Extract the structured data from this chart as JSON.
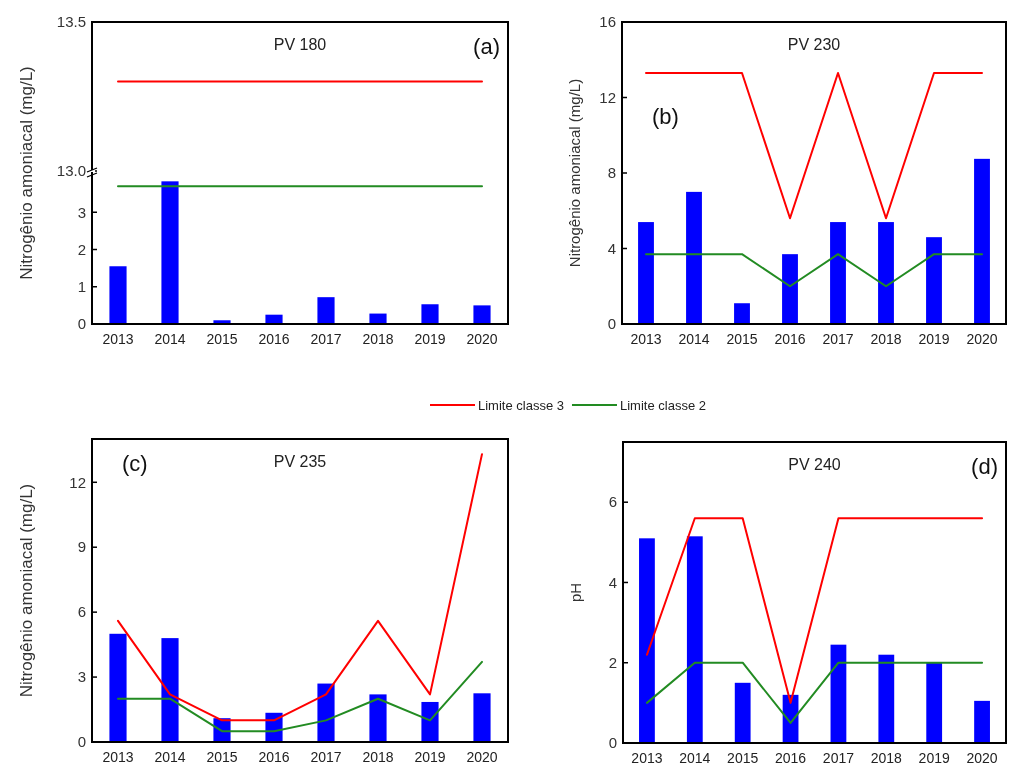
{
  "chart_data": [
    {
      "type": "line",
      "title": "PV 180",
      "annotations": [
        "(a)"
      ],
      "categories": [
        "2013",
        "2014",
        "2015",
        "2016",
        "2017",
        "2018",
        "2019",
        "2020"
      ],
      "ylim": [
        13,
        13.5
      ],
      "yticks": [
        {
          "value": 13,
          "label": "13.0"
        },
        13.5
      ],
      "tick_labels": "y",
      "series": [
        {
          "name": "Limite classe 3",
          "color": "#ff0000",
          "values": [
            13.3,
            13.3,
            13.3,
            13.3,
            13.3,
            13.3,
            13.3,
            13.3
          ]
        }
      ]
    },
    {
      "type": "bar",
      "ylabel": "Nitrogênio amoniacal (mg/L)",
      "categories": [
        "2013",
        "2014",
        "2015",
        "2016",
        "2017",
        "2018",
        "2019",
        "2020"
      ],
      "ylim": [
        0,
        4
      ],
      "yticks": [
        0,
        1,
        2,
        3
      ],
      "legend": "bottom",
      "series": [
        {
          "color": "#0000ff",
          "values": [
            1.55,
            3.83,
            0.1,
            0.25,
            0.72,
            0.28,
            0.53,
            0.5
          ]
        },
        {
          "type": "line",
          "name": "Limite classe 2",
          "color": "#228b22",
          "values": [
            3.7,
            3.7,
            3.7,
            3.7,
            3.7,
            3.7,
            3.7,
            3.7
          ]
        }
      ]
    },
    {
      "type": "bar",
      "title": "PV 230",
      "ylabel": "Nitrogênio amoniacal (mg/L)",
      "annotations": [
        "(b)"
      ],
      "categories": [
        "2013",
        "2014",
        "2015",
        "2016",
        "2017",
        "2018",
        "2019",
        "2020"
      ],
      "ylim": [
        0,
        16
      ],
      "yticks": [
        0,
        4,
        8,
        12,
        16
      ],
      "series": [
        {
          "color": "#0000ff",
          "values": [
            5.4,
            7.0,
            1.1,
            3.7,
            5.4,
            5.4,
            4.6,
            8.75
          ]
        },
        {
          "type": "line",
          "color": "#ff0000",
          "values": [
            13.3,
            13.3,
            13.3,
            5.6,
            13.3,
            5.6,
            13.3,
            13.3
          ]
        },
        {
          "type": "line",
          "color": "#228b22",
          "values": [
            3.7,
            3.7,
            3.7,
            2.0,
            3.7,
            2.0,
            3.7,
            3.7
          ]
        }
      ]
    },
    {
      "type": "bar",
      "title": "PV 235",
      "ylabel": "Nitrogênio amoniacal (mg/L)",
      "annotations": [
        "(c)"
      ],
      "categories": [
        "2013",
        "2014",
        "2015",
        "2016",
        "2017",
        "2018",
        "2019",
        "2020"
      ],
      "ylim": [
        0,
        14
      ],
      "yticks": [
        0,
        3,
        6,
        9,
        12
      ],
      "series": [
        {
          "color": "#0000ff",
          "values": [
            5.0,
            4.8,
            1.1,
            1.35,
            2.7,
            2.2,
            1.85,
            2.25
          ]
        },
        {
          "type": "line",
          "color": "#ff0000",
          "values": [
            5.6,
            2.2,
            1.0,
            1.0,
            2.2,
            5.6,
            2.2,
            13.3
          ]
        },
        {
          "type": "line",
          "color": "#228b22",
          "values": [
            2.0,
            2.0,
            0.5,
            0.5,
            1.0,
            2.0,
            1.0,
            3.7
          ]
        }
      ]
    },
    {
      "type": "bar",
      "title": "PV 240",
      "ylabel": "pH",
      "annotations": [
        "(d)"
      ],
      "categories": [
        "2013",
        "2014",
        "2015",
        "2016",
        "2017",
        "2018",
        "2019",
        "2020"
      ],
      "ylim": [
        0,
        7.5
      ],
      "yticks": [
        0,
        2,
        4,
        6
      ],
      "series": [
        {
          "color": "#0000ff",
          "values": [
            5.1,
            5.15,
            1.5,
            1.2,
            2.45,
            2.2,
            2.0,
            1.05
          ]
        },
        {
          "type": "line",
          "color": "#ff0000",
          "values": [
            2.2,
            5.6,
            5.6,
            1.0,
            5.6,
            5.6,
            5.6,
            5.6
          ]
        },
        {
          "type": "line",
          "color": "#228b22",
          "values": [
            1.0,
            2.0,
            2.0,
            0.5,
            2.0,
            2.0,
            2.0,
            2.0
          ]
        }
      ]
    }
  ]
}
